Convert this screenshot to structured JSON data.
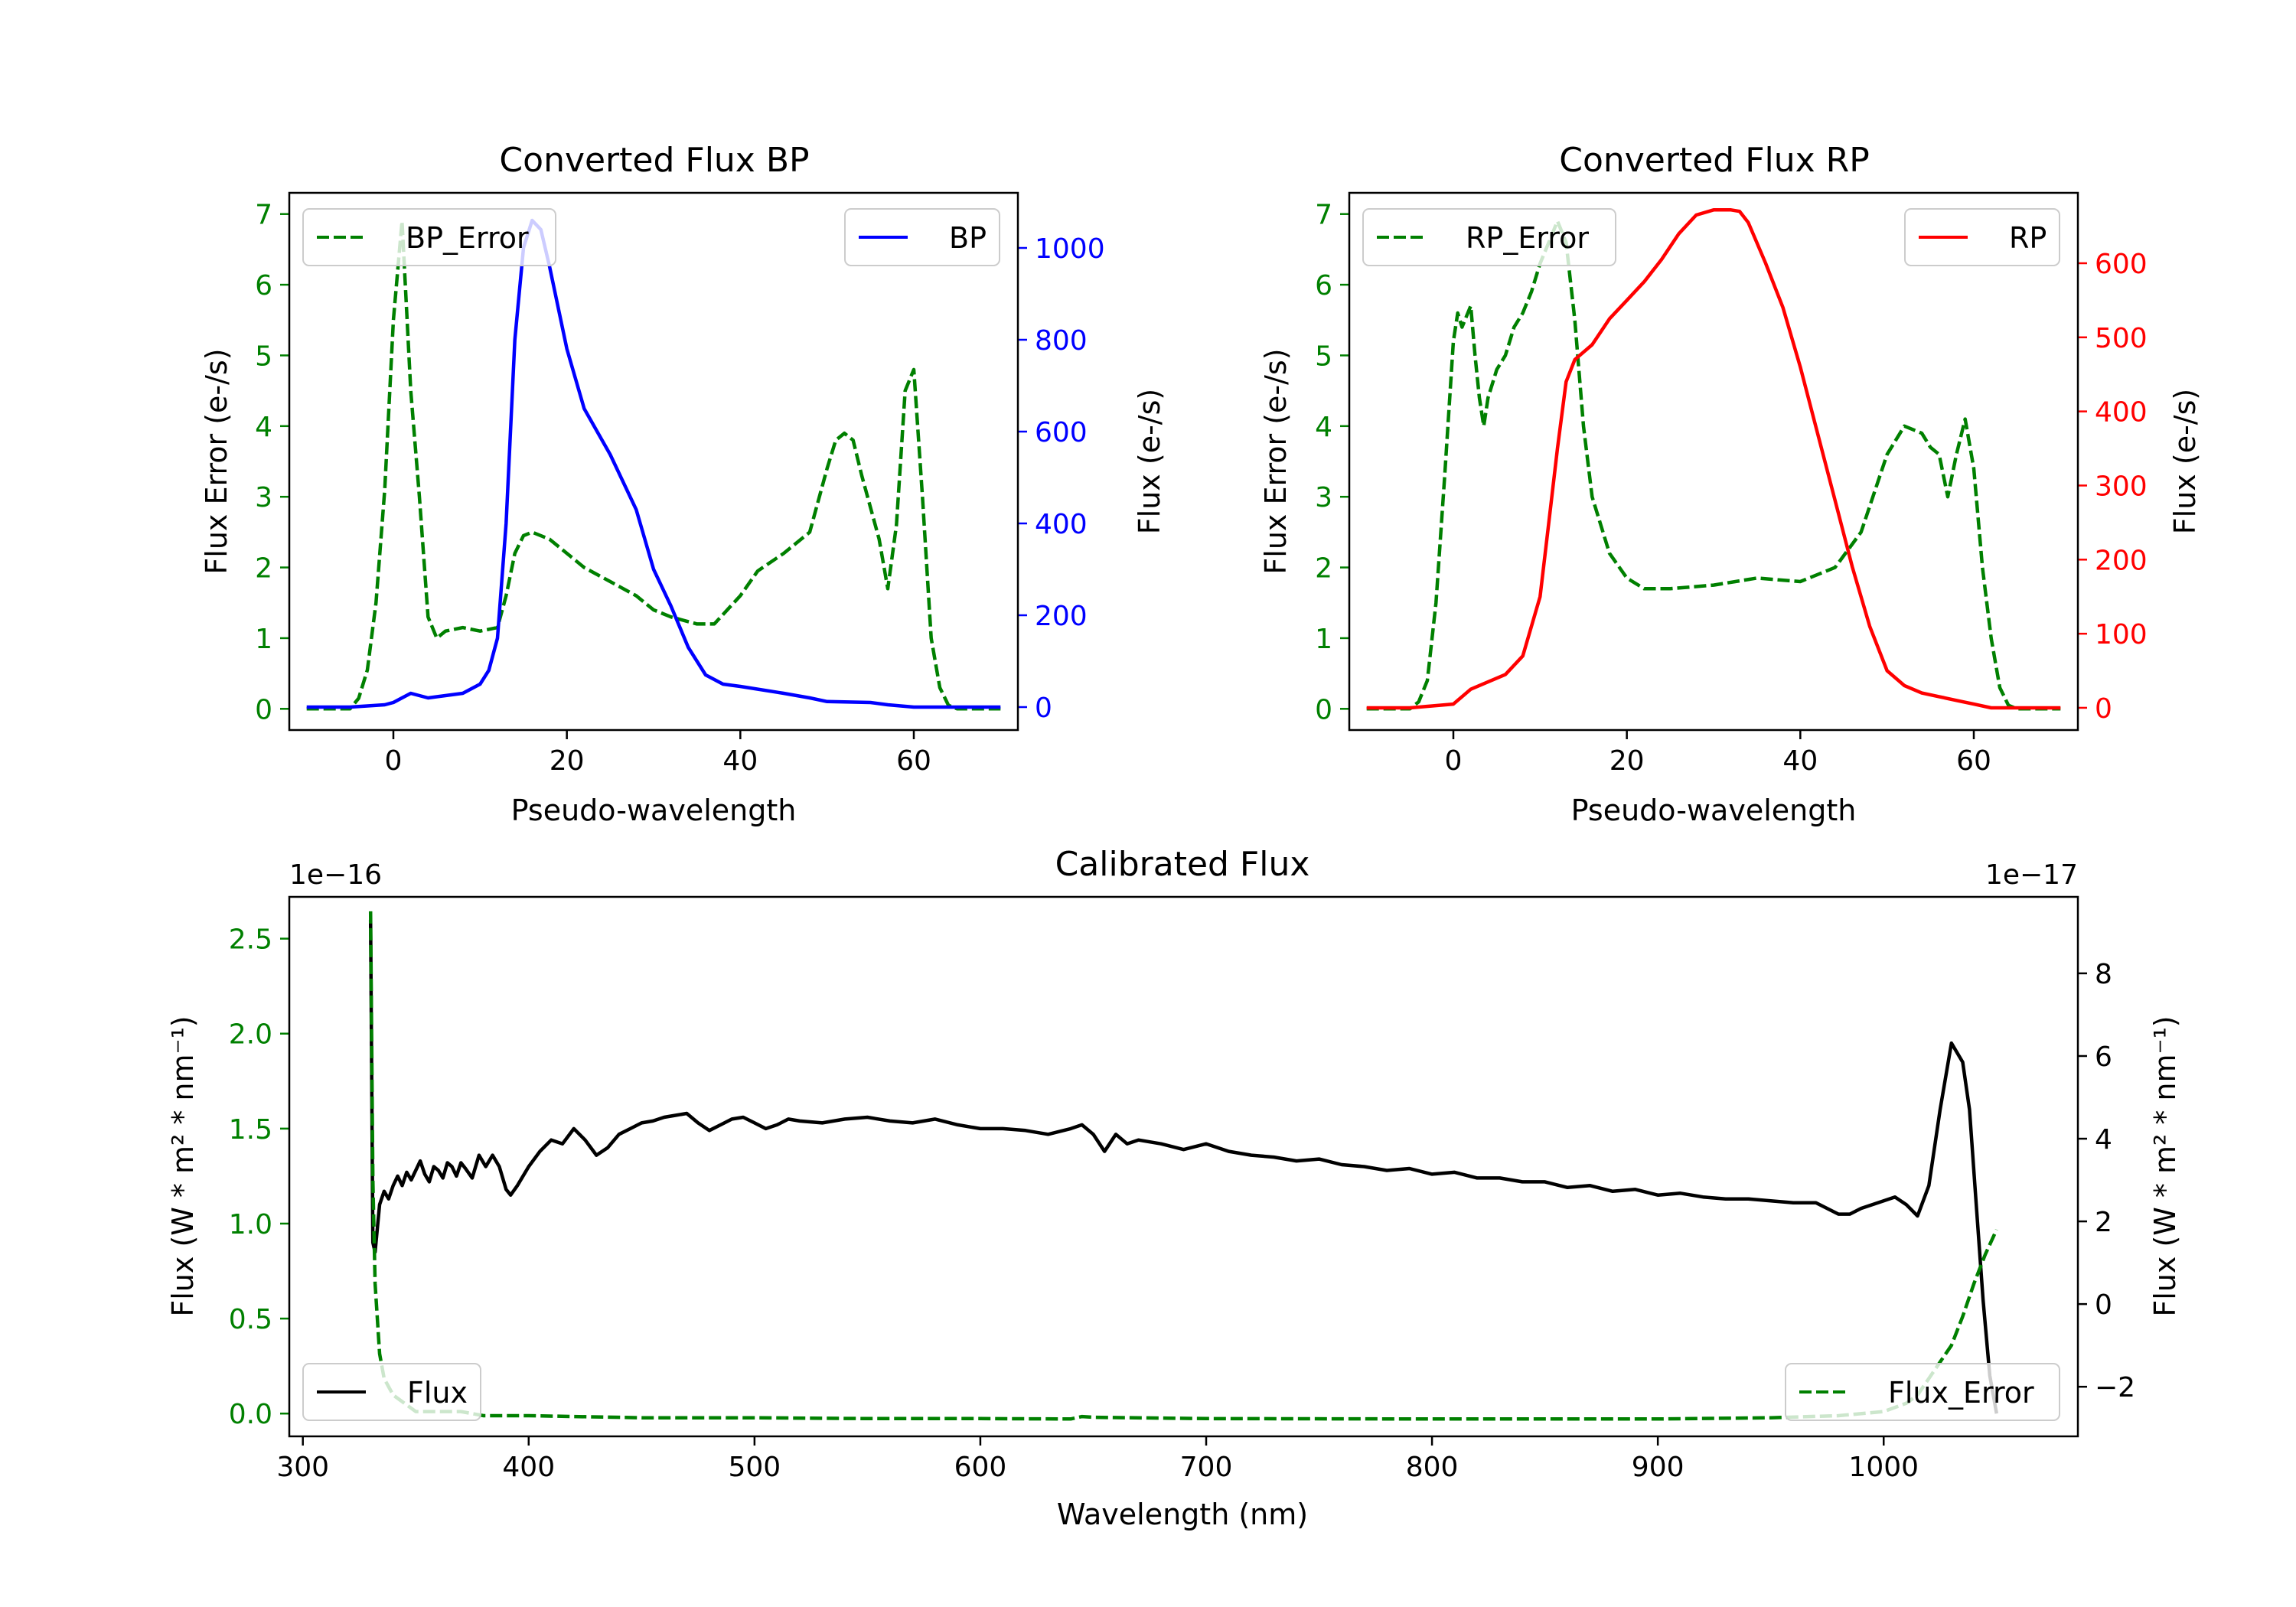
{
  "chart_data": [
    {
      "type": "line",
      "title": "Converted Flux BP",
      "xlabel": "Pseudo-wavelength",
      "ylabel_left": "Flux Error (e-/s)",
      "ylabel_right": "Flux (e-/s)",
      "xlim": [
        -12,
        72
      ],
      "ylim_left": [
        -0.3,
        7.3
      ],
      "ylim_right": [
        -50,
        1120
      ],
      "xticks": [
        0,
        20,
        40,
        60
      ],
      "yticks_left": [
        0,
        1,
        2,
        3,
        4,
        5,
        6,
        7
      ],
      "yticks_right": [
        0,
        200,
        400,
        600,
        800,
        1000
      ],
      "left_axis_color": "#008000",
      "right_axis_color": "#0000ff",
      "series": [
        {
          "name": "BP_Error",
          "axis": "left",
          "color": "#008000",
          "dash": true,
          "legend_position": "top-left",
          "x": [
            -10,
            -5,
            -4,
            -3,
            -2,
            -1,
            0,
            1,
            2,
            3,
            4,
            5,
            6,
            8,
            10,
            12,
            13,
            14,
            15,
            16,
            18,
            20,
            22,
            25,
            28,
            30,
            32,
            35,
            37,
            40,
            42,
            45,
            48,
            50,
            51,
            52,
            53,
            54,
            56,
            57,
            58,
            59,
            60,
            61,
            62,
            63,
            64,
            65,
            67,
            70
          ],
          "y": [
            0.0,
            0.0,
            0.15,
            0.55,
            1.5,
            3.1,
            5.5,
            6.9,
            4.5,
            3.0,
            1.3,
            1.0,
            1.1,
            1.15,
            1.1,
            1.15,
            1.6,
            2.2,
            2.45,
            2.5,
            2.4,
            2.2,
            2.0,
            1.8,
            1.6,
            1.4,
            1.3,
            1.2,
            1.2,
            1.6,
            1.95,
            2.2,
            2.5,
            3.4,
            3.8,
            3.9,
            3.8,
            3.3,
            2.4,
            1.7,
            2.6,
            4.5,
            4.8,
            3.0,
            1.0,
            0.3,
            0.05,
            0.0,
            0.0,
            0.0
          ]
        },
        {
          "name": "BP",
          "axis": "right",
          "color": "#0000ff",
          "dash": false,
          "legend_position": "top-right",
          "x": [
            -10,
            -5,
            -1,
            0,
            1,
            2,
            3,
            4,
            6,
            8,
            10,
            11,
            12,
            13,
            14,
            15,
            16,
            17,
            18,
            20,
            22,
            25,
            28,
            30,
            32,
            34,
            36,
            38,
            40,
            45,
            48,
            50,
            55,
            57,
            60,
            65,
            70
          ],
          "y": [
            0,
            0,
            5,
            10,
            20,
            30,
            25,
            20,
            25,
            30,
            50,
            80,
            150,
            400,
            800,
            1000,
            1060,
            1040,
            960,
            780,
            650,
            550,
            430,
            300,
            220,
            130,
            70,
            50,
            45,
            30,
            20,
            12,
            10,
            5,
            0,
            0,
            0
          ]
        }
      ]
    },
    {
      "type": "line",
      "title": "Converted Flux RP",
      "xlabel": "Pseudo-wavelength",
      "ylabel_left": "Flux Error (e-/s)",
      "ylabel_right": "Flux (e-/s)",
      "xlim": [
        -12,
        72
      ],
      "ylim_left": [
        -0.3,
        7.3
      ],
      "ylim_right": [
        -30,
        695
      ],
      "xticks": [
        0,
        20,
        40,
        60
      ],
      "yticks_left": [
        0,
        1,
        2,
        3,
        4,
        5,
        6,
        7
      ],
      "yticks_right": [
        0,
        100,
        200,
        300,
        400,
        500,
        600
      ],
      "left_axis_color": "#008000",
      "right_axis_color": "#ff0000",
      "series": [
        {
          "name": "RP_Error",
          "axis": "left",
          "color": "#008000",
          "dash": true,
          "legend_position": "top-left",
          "x": [
            -10,
            -5,
            -4,
            -3,
            -2,
            -1,
            0,
            0.5,
            1,
            2,
            2.5,
            3,
            3.5,
            4,
            5,
            6,
            7,
            8,
            9,
            10,
            11,
            12,
            13,
            14,
            15,
            16,
            18,
            20,
            22,
            25,
            30,
            35,
            40,
            44,
            47,
            50,
            52,
            54,
            55,
            56,
            57,
            58,
            59,
            60,
            61,
            62,
            63,
            64,
            65,
            70
          ],
          "y": [
            0.0,
            0.0,
            0.1,
            0.4,
            1.5,
            3.3,
            5.2,
            5.6,
            5.4,
            5.7,
            5.0,
            4.4,
            4.0,
            4.4,
            4.8,
            5.0,
            5.4,
            5.6,
            5.9,
            6.3,
            6.6,
            6.9,
            6.6,
            5.5,
            4.0,
            3.0,
            2.2,
            1.85,
            1.7,
            1.7,
            1.75,
            1.85,
            1.8,
            2.0,
            2.5,
            3.6,
            4.0,
            3.9,
            3.7,
            3.6,
            3.0,
            3.6,
            4.1,
            3.4,
            2.0,
            1.0,
            0.3,
            0.05,
            0.0,
            0.0
          ]
        },
        {
          "name": "RP",
          "axis": "right",
          "color": "#ff0000",
          "dash": false,
          "legend_position": "top-right",
          "x": [
            -10,
            -5,
            0,
            1,
            2,
            4,
            6,
            8,
            10,
            11,
            12,
            13,
            14,
            15,
            16,
            18,
            20,
            22,
            24,
            26,
            28,
            30,
            32,
            33,
            34,
            36,
            38,
            40,
            42,
            44,
            46,
            48,
            50,
            52,
            54,
            56,
            58,
            60,
            62,
            65,
            70
          ],
          "y": [
            0,
            0,
            5,
            15,
            25,
            35,
            45,
            70,
            150,
            250,
            350,
            440,
            470,
            480,
            490,
            525,
            550,
            575,
            605,
            640,
            665,
            672,
            672,
            670,
            655,
            600,
            540,
            460,
            370,
            280,
            190,
            110,
            50,
            30,
            20,
            15,
            10,
            5,
            0,
            0,
            0
          ]
        }
      ]
    },
    {
      "type": "line",
      "title": "Calibrated Flux",
      "xlabel": "Wavelength (nm)",
      "ylabel_left": "Flux (W * m² * nm⁻¹)",
      "ylabel_right": "Flux (W * m² * nm⁻¹)",
      "offset_left": "1e−16",
      "offset_right": "1e−17",
      "xlim": [
        294,
        1086
      ],
      "ylim_left": [
        -0.12,
        2.72
      ],
      "ylim_right": [
        -3.2,
        9.85
      ],
      "xticks": [
        300,
        400,
        500,
        600,
        700,
        800,
        900,
        1000
      ],
      "yticks_left": [
        0.0,
        0.5,
        1.0,
        1.5,
        2.0,
        2.5
      ],
      "yticks_right": [
        -2,
        0,
        2,
        4,
        6,
        8
      ],
      "yticklabels_left": [
        "0.0",
        "0.5",
        "1.0",
        "1.5",
        "2.0",
        "2.5"
      ],
      "yticklabels_right": [
        "−2",
        "0",
        "2",
        "4",
        "6",
        "8"
      ],
      "left_axis_color": "#008000",
      "right_axis_color": "#000000",
      "series": [
        {
          "name": "Flux",
          "axis": "left",
          "color": "#000000",
          "dash": false,
          "legend_position": "bottom-left",
          "x": [
            330,
            331,
            332,
            334,
            336,
            338,
            340,
            342,
            344,
            346,
            348,
            350,
            352,
            354,
            356,
            358,
            360,
            362,
            364,
            366,
            368,
            370,
            372,
            375,
            378,
            381,
            384,
            387,
            390,
            392,
            395,
            400,
            405,
            410,
            415,
            420,
            425,
            430,
            435,
            440,
            445,
            450,
            455,
            460,
            465,
            470,
            475,
            480,
            485,
            490,
            495,
            500,
            505,
            510,
            515,
            520,
            530,
            540,
            550,
            560,
            570,
            580,
            590,
            600,
            610,
            620,
            630,
            640,
            645,
            650,
            655,
            660,
            665,
            670,
            680,
            690,
            700,
            710,
            720,
            730,
            740,
            750,
            760,
            770,
            780,
            790,
            800,
            810,
            820,
            830,
            840,
            850,
            860,
            870,
            880,
            890,
            900,
            910,
            920,
            930,
            940,
            950,
            960,
            970,
            980,
            985,
            990,
            1000,
            1005,
            1010,
            1015,
            1020,
            1025,
            1030,
            1035,
            1038,
            1041,
            1044,
            1047,
            1050
          ],
          "y": [
            2.6,
            0.9,
            0.85,
            1.1,
            1.17,
            1.13,
            1.2,
            1.25,
            1.2,
            1.27,
            1.23,
            1.28,
            1.33,
            1.26,
            1.22,
            1.3,
            1.28,
            1.24,
            1.32,
            1.3,
            1.25,
            1.32,
            1.29,
            1.24,
            1.36,
            1.3,
            1.36,
            1.3,
            1.18,
            1.15,
            1.2,
            1.3,
            1.38,
            1.44,
            1.42,
            1.5,
            1.44,
            1.36,
            1.4,
            1.47,
            1.5,
            1.53,
            1.54,
            1.56,
            1.57,
            1.58,
            1.53,
            1.49,
            1.52,
            1.55,
            1.56,
            1.53,
            1.5,
            1.52,
            1.55,
            1.54,
            1.53,
            1.55,
            1.56,
            1.54,
            1.53,
            1.55,
            1.52,
            1.5,
            1.5,
            1.49,
            1.47,
            1.5,
            1.52,
            1.47,
            1.38,
            1.47,
            1.42,
            1.44,
            1.42,
            1.39,
            1.42,
            1.38,
            1.36,
            1.35,
            1.33,
            1.34,
            1.31,
            1.3,
            1.28,
            1.29,
            1.26,
            1.27,
            1.24,
            1.24,
            1.22,
            1.22,
            1.19,
            1.2,
            1.17,
            1.18,
            1.15,
            1.16,
            1.14,
            1.13,
            1.13,
            1.12,
            1.11,
            1.11,
            1.05,
            1.05,
            1.08,
            1.12,
            1.14,
            1.1,
            1.04,
            1.2,
            1.6,
            1.95,
            1.85,
            1.6,
            1.1,
            0.6,
            0.2,
            0.0
          ]
        },
        {
          "name": "Flux_Error",
          "axis": "right",
          "color": "#008000",
          "dash": true,
          "legend_position": "bottom-right",
          "x": [
            330,
            331,
            332,
            334,
            336,
            340,
            345,
            350,
            360,
            370,
            380,
            390,
            400,
            450,
            500,
            550,
            600,
            640,
            645,
            650,
            700,
            800,
            900,
            950,
            980,
            1000,
            1010,
            1015,
            1020,
            1025,
            1030,
            1035,
            1040,
            1045,
            1050
          ],
          "y": [
            9.5,
            3.0,
            0.5,
            -1.2,
            -1.8,
            -2.2,
            -2.4,
            -2.6,
            -2.6,
            -2.6,
            -2.7,
            -2.7,
            -2.7,
            -2.75,
            -2.75,
            -2.77,
            -2.77,
            -2.78,
            -2.72,
            -2.74,
            -2.77,
            -2.78,
            -2.78,
            -2.75,
            -2.7,
            -2.6,
            -2.4,
            -2.2,
            -1.8,
            -1.4,
            -1.0,
            -0.3,
            0.5,
            1.2,
            1.8
          ]
        }
      ]
    }
  ]
}
